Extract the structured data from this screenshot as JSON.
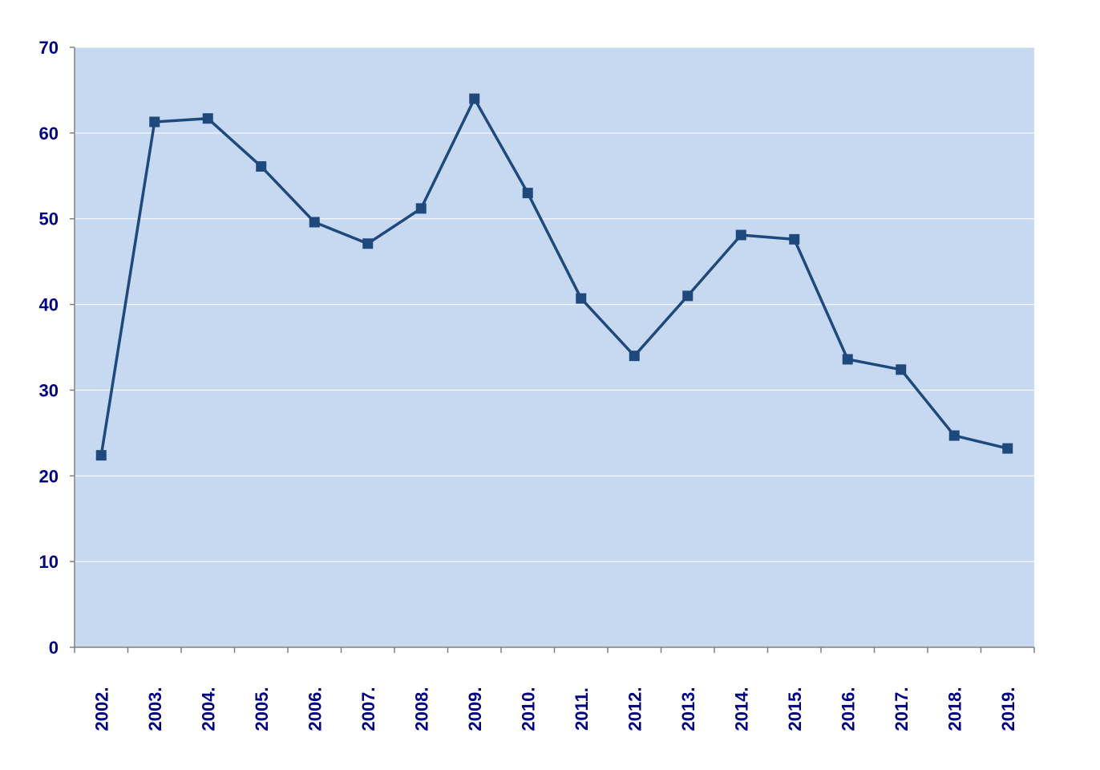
{
  "chart_data": {
    "type": "line",
    "title": "",
    "xlabel": "",
    "ylabel": "",
    "categories": [
      "2002.",
      "2003.",
      "2004.",
      "2005.",
      "2006.",
      "2007.",
      "2008.",
      "2009.",
      "2010.",
      "2011.",
      "2012.",
      "2013.",
      "2014.",
      "2015.",
      "2016.",
      "2017.",
      "2018.",
      "2019."
    ],
    "series": [
      {
        "values": [
          22.4,
          61.3,
          61.7,
          56.1,
          49.6,
          47.1,
          51.2,
          64.0,
          53.0,
          40.7,
          34.0,
          41.0,
          48.1,
          47.6,
          33.6,
          32.4,
          24.7,
          23.2
        ]
      }
    ],
    "ylim": [
      0,
      70
    ],
    "yticks": [
      0,
      10,
      20,
      30,
      40,
      50,
      60,
      70
    ],
    "grid": true,
    "legend": "none",
    "colors": {
      "plot_background": "#c6d9f0",
      "line": "#1f497d",
      "marker": "#1f497d",
      "axis_text": "#000080",
      "gridline": "#ffffff",
      "axis_line": "#808080"
    }
  }
}
